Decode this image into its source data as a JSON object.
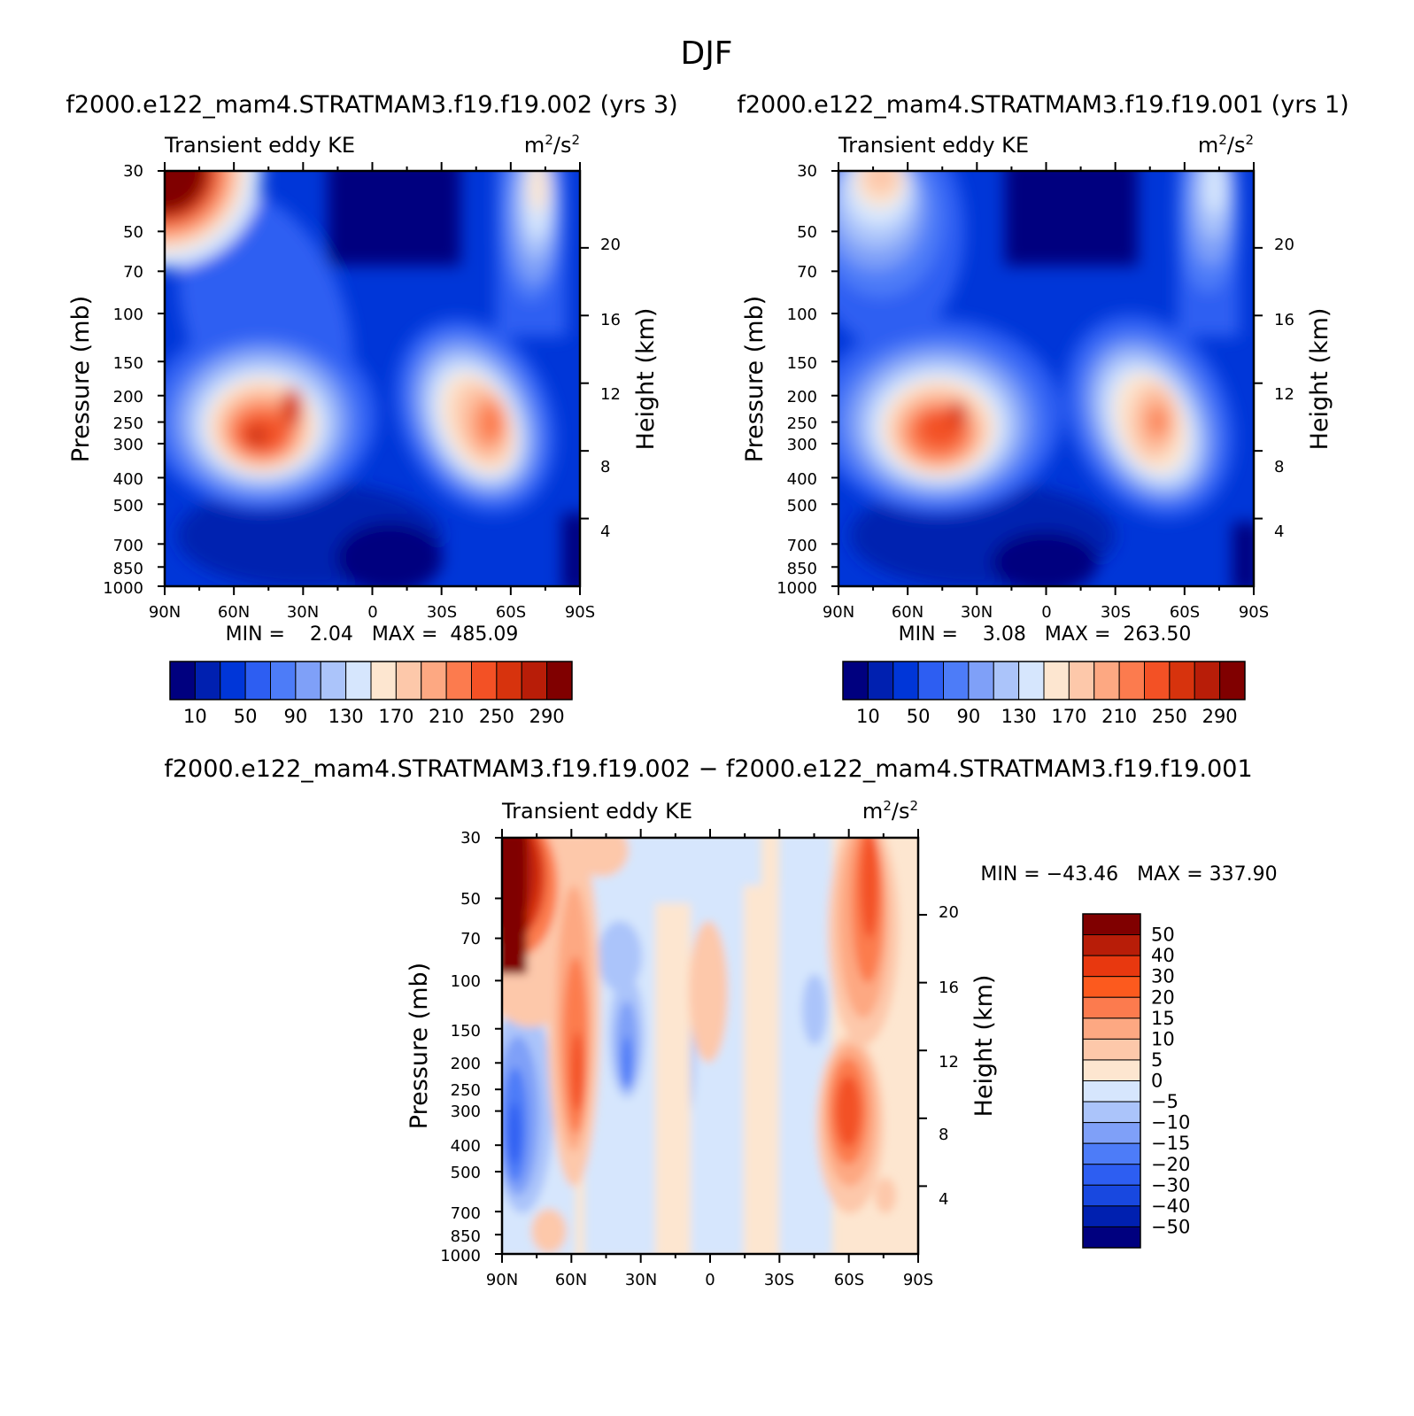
{
  "season": "DJF",
  "panels": {
    "top_left": {
      "case_title": "f2000.e122_mam4.STRATMAM3.f19.f19.002 (yrs 3)",
      "min_max": "MIN =    2.04   MAX =  485.09"
    },
    "top_right": {
      "case_title": "f2000.e122_mam4.STRATMAM3.f19.f19.001 (yrs 1)",
      "min_max": "MIN =    3.08   MAX =  263.50"
    },
    "bottom": {
      "case_title": "f2000.e122_mam4.STRATMAM3.f19.f19.002 − f2000.e122_mam4.STRATMAM3.f19.f19.001",
      "min_max": "MIN = −43.46   MAX = 337.90"
    }
  },
  "chart_data": [
    {
      "type": "heatmap",
      "title": "Transient eddy KE",
      "units": "m²/s²",
      "subtitle": "f2000.e122_mam4.STRATMAM3.f19.f19.002 (yrs 3)",
      "xlabel": "",
      "ylabel": "Pressure (mb)",
      "y2label": "Height (km)",
      "x_ticks": [
        "90N",
        "60N",
        "30N",
        "0",
        "30S",
        "60S",
        "90S"
      ],
      "x_range": [
        90,
        -90
      ],
      "y_ticks": [
        30,
        50,
        70,
        100,
        150,
        200,
        250,
        300,
        400,
        500,
        700,
        850,
        1000
      ],
      "y_range": [
        1000,
        30
      ],
      "y2_ticks": [
        4,
        8,
        12,
        16,
        20
      ],
      "colorbar_levels": [
        10,
        30,
        50,
        70,
        90,
        110,
        130,
        150,
        170,
        190,
        210,
        230,
        250,
        270,
        290
      ],
      "colorbar_labels": [
        "10",
        "50",
        "90",
        "130",
        "170",
        "210",
        "250",
        "290"
      ],
      "min": 2.04,
      "max": 485.09,
      "features": [
        {
          "lat": 38,
          "p": 270,
          "value": 270
        },
        {
          "lat": -47,
          "p": 290,
          "value": 240
        },
        {
          "lat": 90,
          "p": 30,
          "value": 485
        }
      ]
    },
    {
      "type": "heatmap",
      "title": "Transient eddy KE",
      "units": "m²/s²",
      "subtitle": "f2000.e122_mam4.STRATMAM3.f19.f19.001 (yrs 1)",
      "xlabel": "",
      "ylabel": "Pressure (mb)",
      "y2label": "Height (km)",
      "x_ticks": [
        "90N",
        "60N",
        "30N",
        "0",
        "30S",
        "60S",
        "90S"
      ],
      "x_range": [
        90,
        -90
      ],
      "y_ticks": [
        30,
        50,
        70,
        100,
        150,
        200,
        250,
        300,
        400,
        500,
        700,
        850,
        1000
      ],
      "y_range": [
        1000,
        30
      ],
      "y2_ticks": [
        4,
        8,
        12,
        16,
        20
      ],
      "colorbar_levels": [
        10,
        30,
        50,
        70,
        90,
        110,
        130,
        150,
        170,
        190,
        210,
        230,
        250,
        270,
        290
      ],
      "colorbar_labels": [
        "10",
        "50",
        "90",
        "130",
        "170",
        "210",
        "250",
        "290"
      ],
      "min": 3.08,
      "max": 263.5,
      "features": [
        {
          "lat": 38,
          "p": 260,
          "value": 250
        },
        {
          "lat": -47,
          "p": 270,
          "value": 220
        }
      ]
    },
    {
      "type": "heatmap",
      "title": "Transient eddy KE",
      "units": "m²/s²",
      "subtitle": "f2000.e122_mam4.STRATMAM3.f19.f19.002 − f2000.e122_mam4.STRATMAM3.f19.f19.001",
      "xlabel": "",
      "ylabel": "Pressure (mb)",
      "y2label": "Height (km)",
      "x_ticks": [
        "90N",
        "60N",
        "30N",
        "0",
        "30S",
        "60S",
        "90S"
      ],
      "x_range": [
        90,
        -90
      ],
      "y_ticks": [
        30,
        50,
        70,
        100,
        150,
        200,
        250,
        300,
        400,
        500,
        700,
        850,
        1000
      ],
      "y_range": [
        1000,
        30
      ],
      "y2_ticks": [
        4,
        8,
        12,
        16,
        20
      ],
      "colorbar_levels": [
        -50,
        -40,
        -30,
        -20,
        -15,
        -10,
        -5,
        0,
        5,
        10,
        15,
        20,
        30,
        40,
        50
      ],
      "colorbar_labels": [
        "50",
        "40",
        "30",
        "20",
        "15",
        "10",
        "5",
        "0",
        "−5",
        "−10",
        "−15",
        "−20",
        "−30",
        "−40",
        "−50"
      ],
      "min": -43.46,
      "max": 337.9,
      "features": [
        {
          "lat": 90,
          "p": 50,
          "value": 60
        },
        {
          "lat": -63,
          "p": 330,
          "value": 30
        },
        {
          "lat": 85,
          "p": 350,
          "value": -35
        }
      ]
    }
  ],
  "colors": {
    "ke_scale": [
      "#00007f",
      "#0020b0",
      "#0036d8",
      "#2d5ef2",
      "#4d7cf8",
      "#7fa0f8",
      "#abc4fa",
      "#d6e6fd",
      "#fde6d0",
      "#fdc8aa",
      "#fda882",
      "#fc7b4e",
      "#f35125",
      "#d7330d",
      "#b81d08",
      "#800000"
    ],
    "diff_scale": [
      "#800000",
      "#b81d08",
      "#e8380f",
      "#fc5a1e",
      "#fc7b4e",
      "#fda882",
      "#fdc8aa",
      "#fde6d0",
      "#d6e6fd",
      "#abc4fa",
      "#7fa0f8",
      "#4d7cf8",
      "#2d5ef2",
      "#1848e0",
      "#0020b0",
      "#00007f"
    ]
  }
}
